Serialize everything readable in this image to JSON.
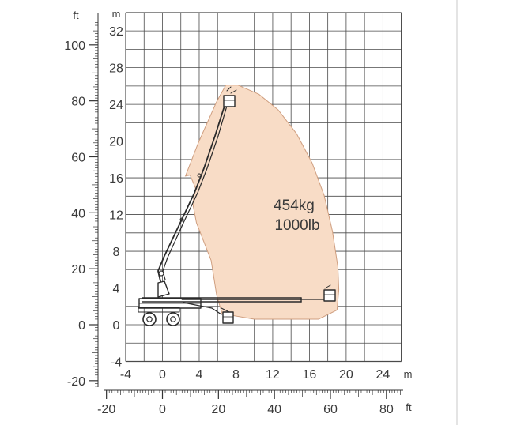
{
  "units": {
    "metric": "m",
    "imperial": "ft"
  },
  "load_label": {
    "line1": "454kg",
    "line2": "1000lb"
  },
  "axes": {
    "m_y_ticks": [
      "32",
      "28",
      "24",
      "20",
      "16",
      "12",
      "8",
      "4",
      "0",
      "-4"
    ],
    "m_x_ticks": [
      "-4",
      "0",
      "4",
      "8",
      "12",
      "16",
      "20",
      "24"
    ],
    "ft_y_ticks": [
      "100",
      "80",
      "60",
      "40",
      "20",
      "0",
      "-20"
    ],
    "ft_x_ticks": [
      "-20",
      "0",
      "20",
      "40",
      "60",
      "80"
    ]
  },
  "colors": {
    "envelope_fill": "#f8dcc6",
    "envelope_stroke": "#cf9e7f",
    "grid": "#4a4a4a",
    "machine": "#2a2a2a",
    "right_border": "#c9c9c9"
  },
  "chart_data": {
    "type": "area",
    "title": "",
    "xlabel": "m",
    "ylabel": "m",
    "xlim": [
      -4,
      26
    ],
    "ylim": [
      -4,
      34
    ],
    "secondary_x_unit": "ft",
    "secondary_y_unit": "ft",
    "capacity": {
      "kg": 454,
      "lb": 1000
    },
    "working_envelope": [
      [
        6.9,
        26.1
      ],
      [
        8.2,
        26.1
      ],
      [
        10.5,
        25.1
      ],
      [
        12.6,
        23.4
      ],
      [
        14.6,
        20.8
      ],
      [
        16.3,
        17.6
      ],
      [
        17.6,
        14.1
      ],
      [
        18.5,
        10.2
      ],
      [
        19.1,
        6.3
      ],
      [
        19.2,
        3.8
      ],
      [
        19.0,
        1.6
      ],
      [
        17.0,
        0.6
      ],
      [
        10.0,
        0.6
      ],
      [
        6.5,
        1.2
      ],
      [
        5.9,
        3.2
      ],
      [
        5.3,
        7.0
      ],
      [
        3.7,
        11.1
      ],
      [
        3.3,
        13.2
      ],
      [
        3.6,
        14.9
      ],
      [
        3.0,
        16.3
      ],
      [
        2.5,
        16.2
      ],
      [
        3.9,
        19.8
      ],
      [
        5.9,
        24.3
      ]
    ]
  }
}
